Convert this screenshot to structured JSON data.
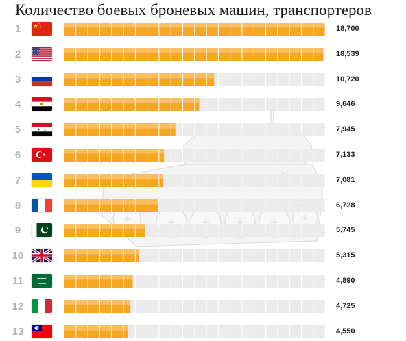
{
  "chart_data": {
    "type": "bar",
    "title": "Количество боевых броневых машин, транспортеров",
    "orientation": "horizontal",
    "max_value": 18700,
    "rows": [
      {
        "rank": "1",
        "flag": "china-flag",
        "value": 18700,
        "label": "18,700"
      },
      {
        "rank": "2",
        "flag": "usa-flag",
        "value": 18539,
        "label": "18,539"
      },
      {
        "rank": "3",
        "flag": "russia-flag",
        "value": 10720,
        "label": "10,720"
      },
      {
        "rank": "4",
        "flag": "egypt-flag",
        "value": 9646,
        "label": "9,646"
      },
      {
        "rank": "5",
        "flag": "syria-flag",
        "value": 7945,
        "label": "7,945"
      },
      {
        "rank": "6",
        "flag": "turkey-flag",
        "value": 7133,
        "label": "7,133"
      },
      {
        "rank": "7",
        "flag": "ukraine-flag",
        "value": 7081,
        "label": "7,081"
      },
      {
        "rank": "8",
        "flag": "france-flag",
        "value": 6728,
        "label": "6,728"
      },
      {
        "rank": "9",
        "flag": "pakistan-flag",
        "value": 5745,
        "label": "5,745"
      },
      {
        "rank": "10",
        "flag": "uk-flag",
        "value": 5315,
        "label": "5,315"
      },
      {
        "rank": "11",
        "flag": "saudi-arabia-flag",
        "value": 4890,
        "label": "4,890"
      },
      {
        "rank": "12",
        "flag": "italy-flag",
        "value": 4725,
        "label": "4,725"
      },
      {
        "rank": "13",
        "flag": "taiwan-flag",
        "value": 4550,
        "label": "4,550"
      }
    ]
  },
  "colors": {
    "bar_fill": "#f5a623",
    "bar_empty": "#ebebeb",
    "rank_text": "#b5b5b5",
    "value_text": "#222222"
  },
  "background_icon": "tank-silhouette-icon"
}
